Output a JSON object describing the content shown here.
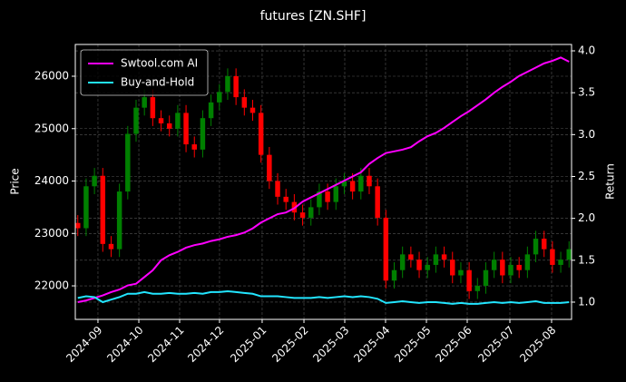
{
  "chart_data": {
    "type": "candlestick",
    "title": "futures [ZN.SHF]",
    "ylabel": "Price",
    "y2label": "Return",
    "open": [
      23200,
      23100,
      23900,
      24100,
      22800,
      22700,
      23800,
      24900,
      25400,
      25600,
      25200,
      25100,
      25000,
      25300,
      24700,
      24600,
      25200,
      25500,
      25700,
      26000,
      25600,
      25400,
      25300,
      24500,
      24000,
      23700,
      23600,
      23400,
      23300,
      23500,
      23800,
      23600,
      23900,
      24000,
      23800,
      24100,
      23900,
      23300,
      22100,
      22300,
      22600,
      22500,
      22300,
      22400,
      22600,
      22500,
      22200,
      22300,
      21900,
      22000,
      22300,
      22500,
      22200,
      22400,
      22300,
      22600,
      22900,
      22700,
      22400,
      22500
    ],
    "high": [
      23350,
      24050,
      24250,
      24250,
      22950,
      23950,
      25050,
      25550,
      25750,
      25750,
      25350,
      25250,
      25450,
      25450,
      24850,
      25350,
      25650,
      25850,
      26150,
      26150,
      25750,
      25550,
      25450,
      24650,
      24150,
      23850,
      23750,
      23550,
      23650,
      23950,
      23950,
      24050,
      24150,
      24150,
      24250,
      24250,
      24050,
      23450,
      22450,
      22750,
      22750,
      22650,
      22550,
      22750,
      22750,
      22650,
      22450,
      22450,
      22150,
      22450,
      22650,
      22650,
      22550,
      22550,
      22750,
      23050,
      23050,
      22850,
      22650,
      22850
    ],
    "low": [
      22950,
      22950,
      23750,
      22650,
      22550,
      22550,
      23650,
      24750,
      25250,
      25050,
      24950,
      24850,
      24850,
      24550,
      24450,
      24450,
      25050,
      25350,
      25550,
      25450,
      25250,
      25150,
      24350,
      23850,
      23550,
      23450,
      23250,
      23150,
      23150,
      23350,
      23450,
      23450,
      23750,
      23650,
      23650,
      23750,
      23150,
      21950,
      21950,
      22150,
      22350,
      22150,
      22150,
      22250,
      22350,
      22050,
      22050,
      21750,
      21750,
      21850,
      22150,
      22050,
      22050,
      22150,
      22150,
      22450,
      22550,
      22250,
      22250,
      22350
    ],
    "close": [
      23100,
      23900,
      24100,
      22800,
      22700,
      23800,
      24900,
      25400,
      25600,
      25200,
      25100,
      25000,
      25300,
      24700,
      24600,
      25200,
      25500,
      25700,
      26000,
      25600,
      25400,
      25300,
      24500,
      24000,
      23700,
      23600,
      23400,
      23300,
      23500,
      23800,
      23600,
      23900,
      24000,
      23800,
      24100,
      23900,
      23300,
      22100,
      22300,
      22600,
      22500,
      22300,
      22400,
      22600,
      22500,
      22200,
      22300,
      21900,
      22000,
      22300,
      22500,
      22200,
      22400,
      22300,
      22600,
      22900,
      22700,
      22400,
      22500,
      22700
    ],
    "up_color": "#008000",
    "down_color": "#ff0000",
    "series": [
      {
        "name": "Swtool.com AI",
        "color": "#ff00ff",
        "axis": "y2",
        "values": [
          1.0,
          1.02,
          1.05,
          1.08,
          1.12,
          1.15,
          1.2,
          1.22,
          1.3,
          1.38,
          1.5,
          1.56,
          1.6,
          1.65,
          1.68,
          1.7,
          1.73,
          1.75,
          1.78,
          1.8,
          1.83,
          1.88,
          1.95,
          2.0,
          2.05,
          2.07,
          2.12,
          2.2,
          2.25,
          2.3,
          2.35,
          2.4,
          2.45,
          2.5,
          2.55,
          2.65,
          2.72,
          2.78,
          2.8,
          2.82,
          2.85,
          2.92,
          2.98,
          3.02,
          3.08,
          3.15,
          3.22,
          3.28,
          3.35,
          3.42,
          3.5,
          3.57,
          3.63,
          3.7,
          3.75,
          3.8,
          3.85,
          3.88,
          3.92,
          3.87
        ]
      },
      {
        "name": "Buy-and-Hold",
        "color": "#22e5ff",
        "axis": "y2",
        "values": [
          1.05,
          1.07,
          1.06,
          1.0,
          1.03,
          1.06,
          1.1,
          1.1,
          1.12,
          1.1,
          1.1,
          1.11,
          1.1,
          1.1,
          1.11,
          1.1,
          1.12,
          1.12,
          1.13,
          1.12,
          1.11,
          1.1,
          1.07,
          1.07,
          1.07,
          1.06,
          1.05,
          1.05,
          1.05,
          1.06,
          1.05,
          1.06,
          1.07,
          1.06,
          1.07,
          1.06,
          1.04,
          0.99,
          1.0,
          1.01,
          1.0,
          0.99,
          1.0,
          1.0,
          0.99,
          0.98,
          0.99,
          0.98,
          0.98,
          0.99,
          1.0,
          0.99,
          1.0,
          0.99,
          1.0,
          1.01,
          0.99,
          0.99,
          0.99,
          1.0
        ]
      }
    ],
    "xlim": [
      -0.3,
      59.3
    ],
    "xticks": [
      {
        "value": 2.42,
        "label": "2024-09"
      },
      {
        "value": 7.33,
        "label": "2024-10"
      },
      {
        "value": 12.23,
        "label": "2024-11"
      },
      {
        "value": 17.02,
        "label": "2024-12"
      },
      {
        "value": 22.14,
        "label": "2025-01"
      },
      {
        "value": 27.16,
        "label": "2025-02"
      },
      {
        "value": 32.06,
        "label": "2025-03"
      },
      {
        "value": 36.96,
        "label": "2025-04"
      },
      {
        "value": 41.87,
        "label": "2025-05"
      },
      {
        "value": 46.77,
        "label": "2025-06"
      },
      {
        "value": 51.89,
        "label": "2025-07"
      },
      {
        "value": 56.9,
        "label": "2025-08"
      }
    ],
    "ylim": [
      21360,
      26606
    ],
    "yticks": [
      22000,
      23000,
      24000,
      25000,
      26000
    ],
    "y2lim": [
      0.794,
      4.076
    ],
    "y2ticks": [
      {
        "value": 1,
        "label": "1.0"
      },
      1.5,
      {
        "value": 2,
        "label": "2.0"
      },
      2.5,
      {
        "value": 3,
        "label": "3.0"
      },
      3.5,
      {
        "value": 4,
        "label": "4.0"
      }
    ],
    "grid": true,
    "legend": "upper left"
  }
}
